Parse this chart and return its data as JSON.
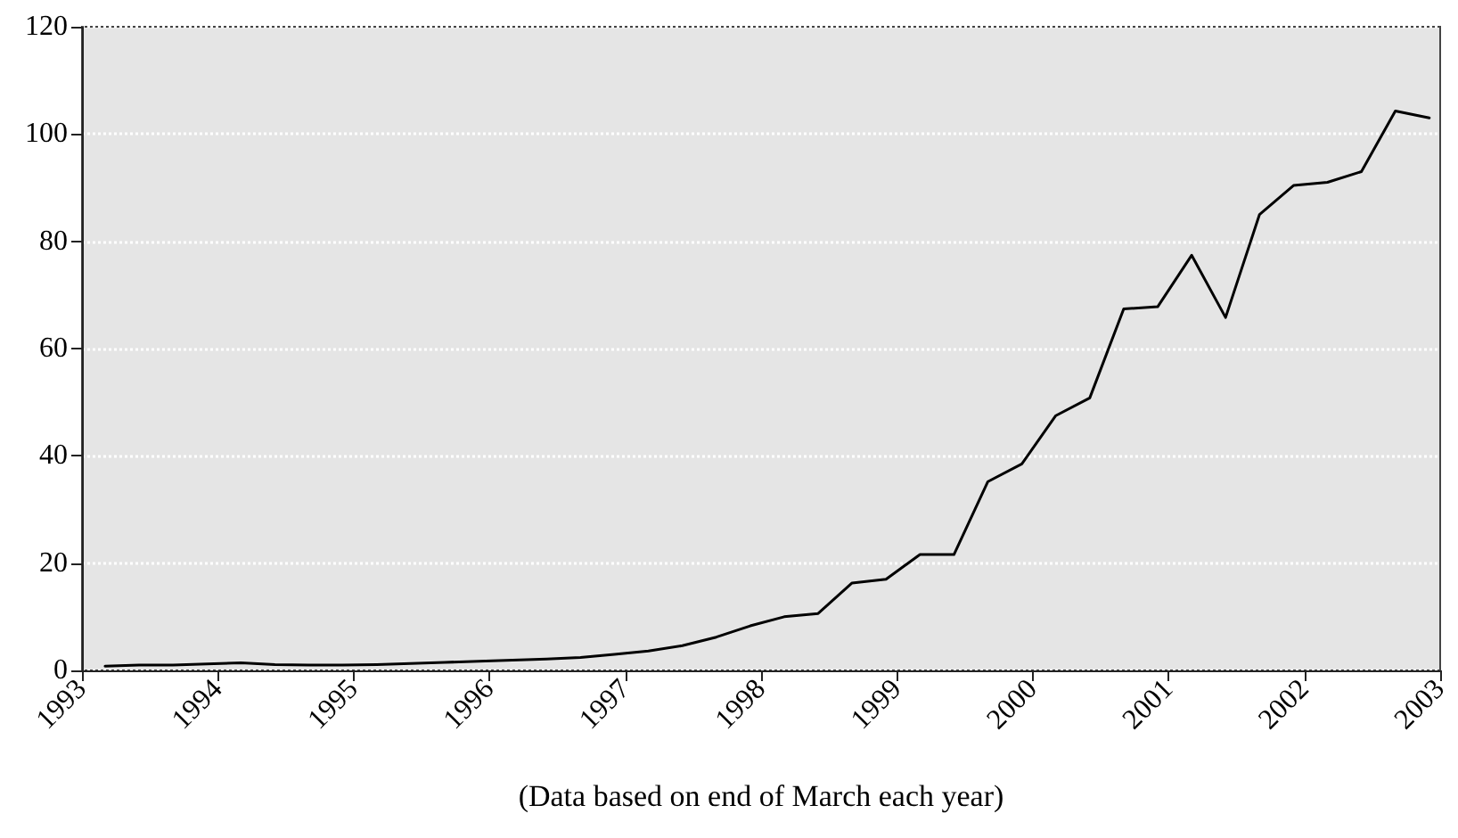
{
  "chart_data": {
    "type": "line",
    "xlabel": "(Data based on end of March each year)",
    "x": [
      1993.17,
      1993.42,
      1993.67,
      1993.92,
      1994.17,
      1994.42,
      1994.67,
      1994.92,
      1995.17,
      1995.42,
      1995.67,
      1995.92,
      1996.17,
      1996.42,
      1996.67,
      1996.92,
      1997.17,
      1997.42,
      1997.67,
      1997.92,
      1998.17,
      1998.42,
      1998.67,
      1998.92,
      1999.17,
      1999.42,
      1999.67,
      1999.92,
      2000.17,
      2000.42,
      2000.67,
      2000.92,
      2001.17,
      2001.42,
      2001.67,
      2001.92,
      2002.17,
      2002.42,
      2002.67,
      2002.92
    ],
    "series": [
      {
        "color": "#000000",
        "values": [
          0.8,
          1.0,
          1.0,
          1.2,
          1.4,
          1.1,
          1.0,
          1.0,
          1.1,
          1.3,
          1.5,
          1.7,
          1.9,
          2.1,
          2.4,
          3.0,
          3.6,
          4.6,
          6.2,
          8.3,
          10.0,
          10.6,
          16.3,
          17.0,
          21.6,
          21.6,
          35.2,
          38.5,
          47.5,
          50.8,
          67.4,
          67.8,
          77.4,
          65.8,
          85.0,
          90.4,
          91.0,
          93.0,
          104.3,
          103.0
        ]
      }
    ],
    "xlim": [
      1993,
      2003
    ],
    "xticks": [
      1993,
      1994,
      1995,
      1996,
      1997,
      1998,
      1999,
      2000,
      2001,
      2002,
      2003
    ],
    "ylim": [
      0,
      120
    ],
    "yticks": [
      0,
      20,
      40,
      60,
      80,
      100,
      120
    ],
    "grid": "y",
    "marker": "none",
    "line_style": "solid"
  }
}
